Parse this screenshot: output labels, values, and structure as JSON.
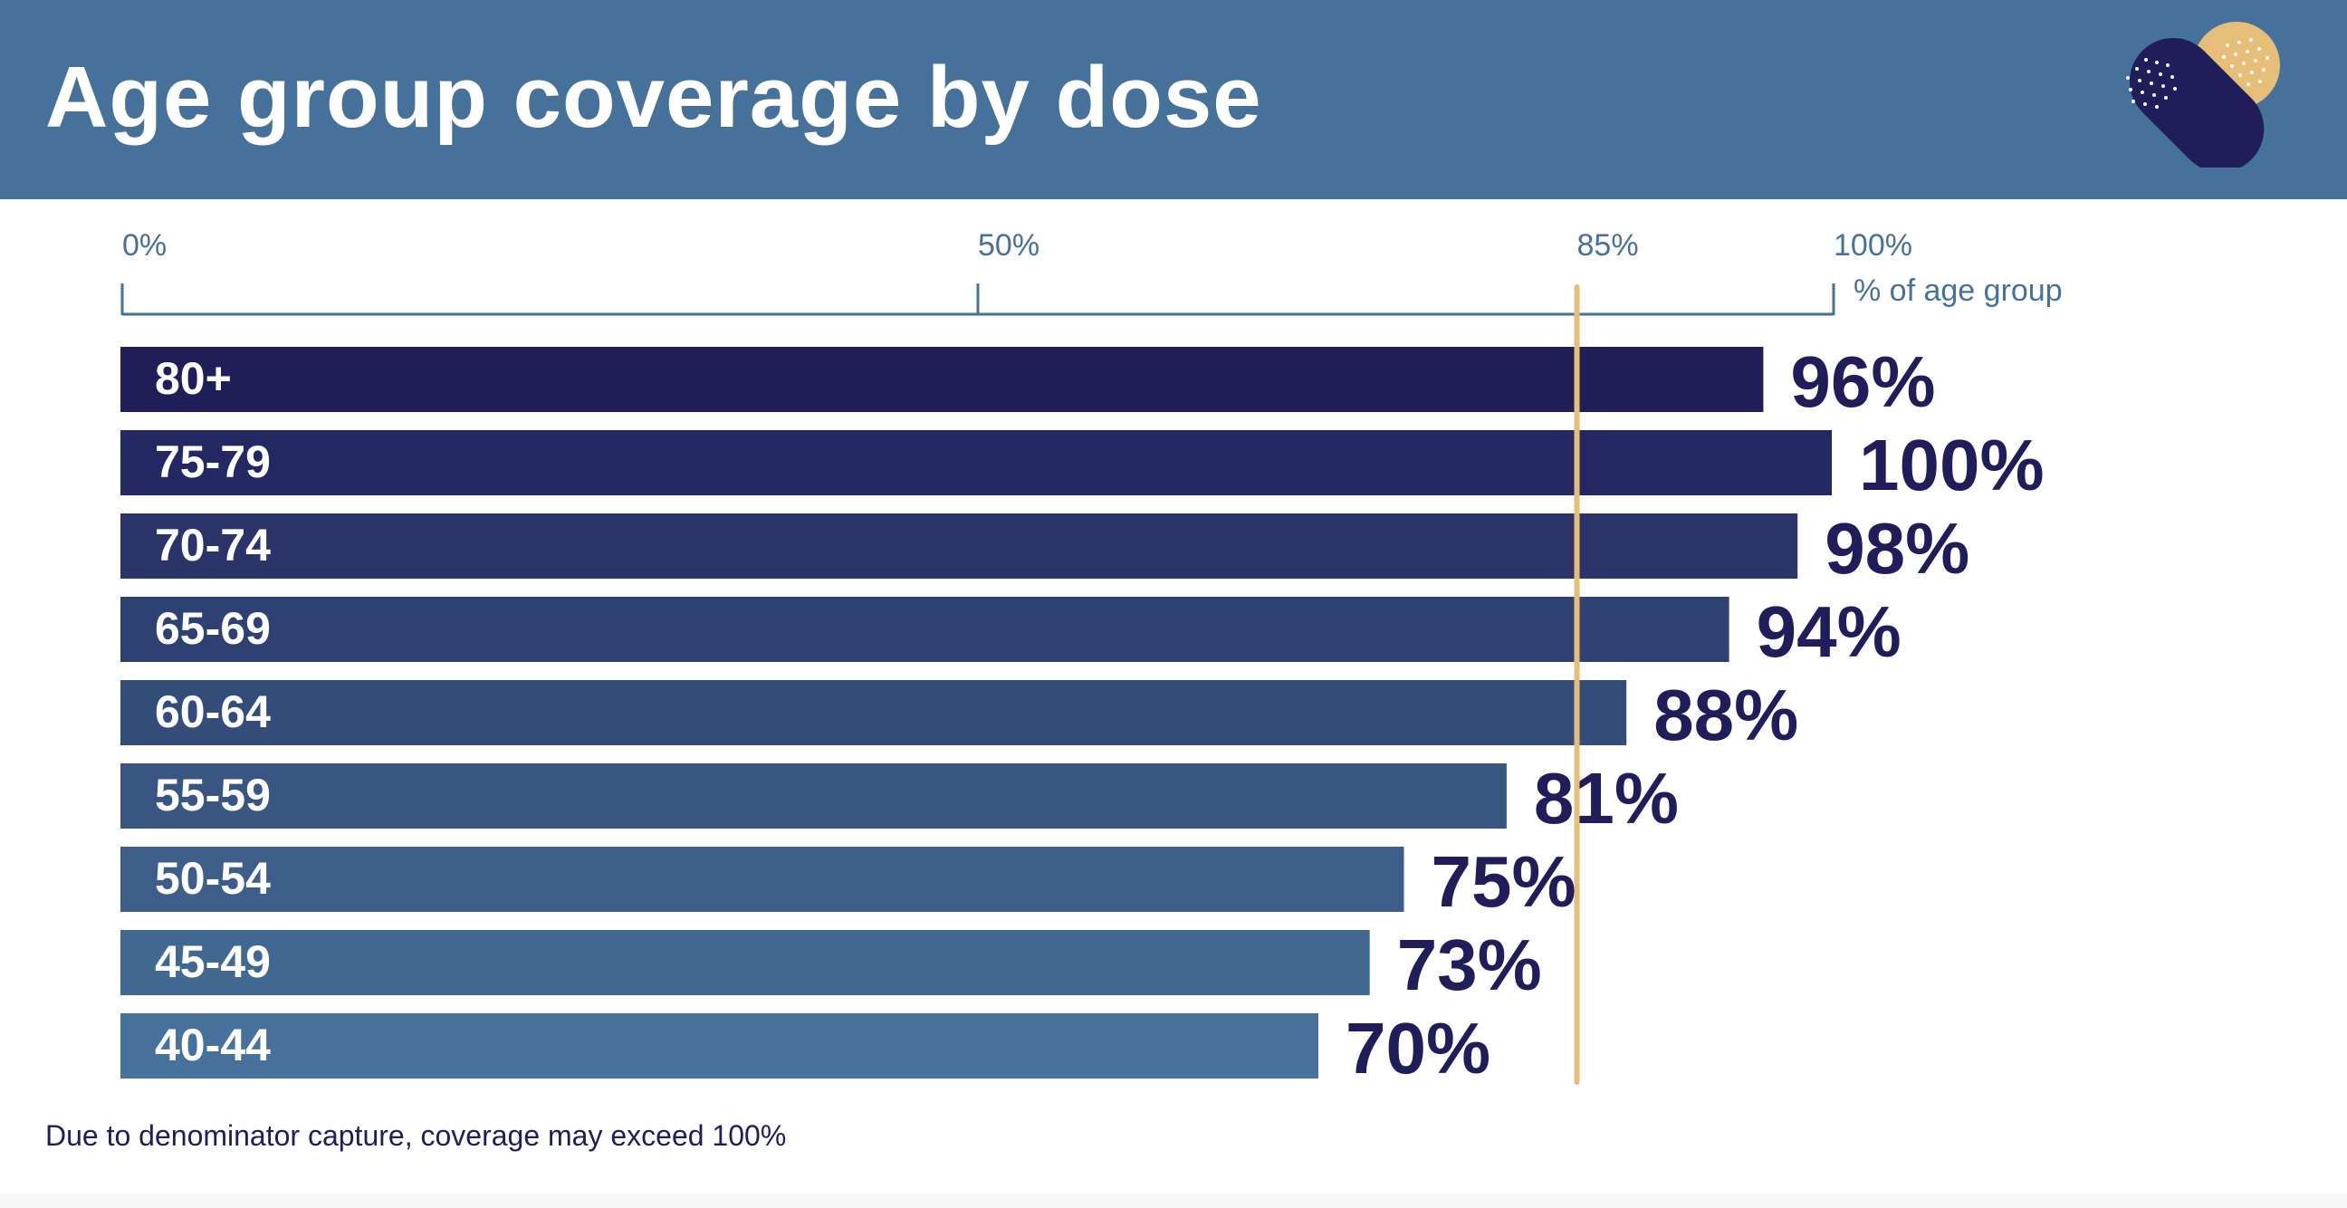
{
  "header": {
    "title": "Age group coverage by dose",
    "logo_icon": "heart-bandage-icon"
  },
  "colors": {
    "header_bg": "#46719b",
    "axis": "#46719b",
    "reference_line": "#e6be78",
    "value_label": "#1f1d5a",
    "category_label": "#ffffff"
  },
  "chart_data": {
    "type": "bar",
    "orientation": "horizontal",
    "title": "Age group coverage by dose",
    "xlabel": "% of age group",
    "ylabel": "",
    "xlim": [
      0,
      100
    ],
    "x_ticks": [
      {
        "value": 0,
        "label": "0%"
      },
      {
        "value": 50,
        "label": "50%"
      },
      {
        "value": 85,
        "label": "85%"
      },
      {
        "value": 100,
        "label": "100%"
      }
    ],
    "categories": [
      "80+",
      "75-79",
      "70-74",
      "65-69",
      "60-64",
      "55-59",
      "50-54",
      "45-49",
      "40-44"
    ],
    "values": [
      96,
      100,
      98,
      94,
      88,
      81,
      75,
      73,
      70
    ],
    "value_labels": [
      "96%",
      "100%",
      "98%",
      "94%",
      "88%",
      "81%",
      "75%",
      "73%",
      "70%"
    ],
    "bar_colors": [
      "#201e59",
      "#242862",
      "#2a3469",
      "#2f4172",
      "#344c7a",
      "#385681",
      "#3c5e88",
      "#416891",
      "#46719b"
    ],
    "reference_line": {
      "value": 85,
      "label": "85%",
      "color": "#e6be78"
    },
    "grid": false,
    "legend": "none",
    "annotations": [
      "Due to denominator capture, coverage may exceed 100%"
    ]
  },
  "footnote": "Due to denominator capture, coverage may exceed 100%"
}
